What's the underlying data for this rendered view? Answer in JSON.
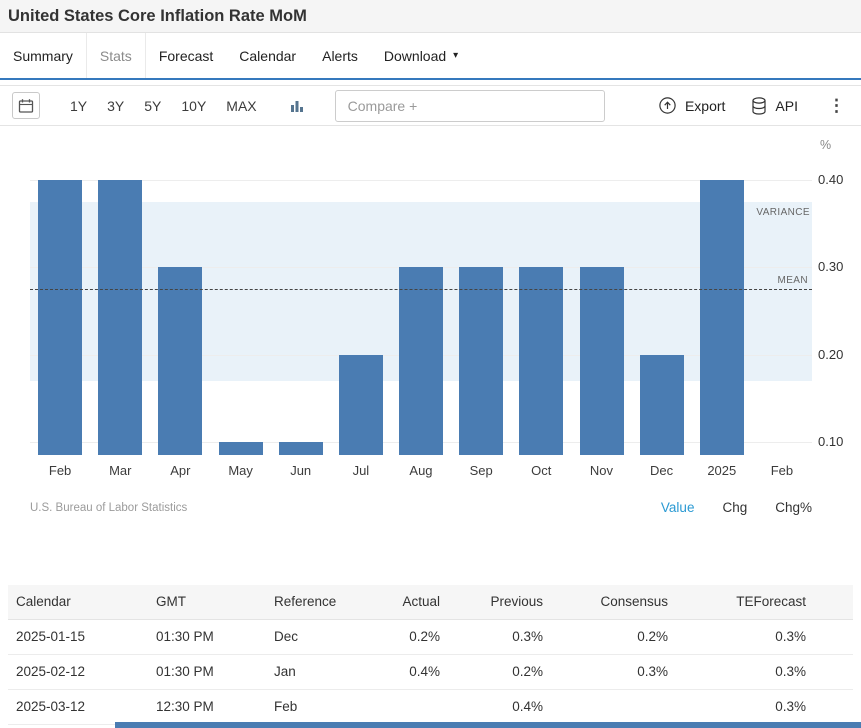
{
  "page": {
    "title": "United States Core Inflation Rate MoM"
  },
  "tabs": [
    {
      "label": "Summary",
      "active": false,
      "caret": false
    },
    {
      "label": "Stats",
      "active": true,
      "caret": false
    },
    {
      "label": "Forecast",
      "active": false,
      "caret": false
    },
    {
      "label": "Calendar",
      "active": false,
      "caret": false
    },
    {
      "label": "Alerts",
      "active": false,
      "caret": false
    },
    {
      "label": "Download",
      "active": false,
      "caret": true
    }
  ],
  "toolbar": {
    "ranges": [
      "1Y",
      "3Y",
      "5Y",
      "10Y",
      "MAX"
    ],
    "compare_placeholder": "Compare +",
    "export_label": "Export",
    "api_label": "API"
  },
  "icons": {
    "kebab": "⋮",
    "caret_down": "▾"
  },
  "chart_data": {
    "type": "bar",
    "title": "United States Core Inflation Rate MoM",
    "unit": "%",
    "categories": [
      "Feb",
      "Mar",
      "Apr",
      "May",
      "Jun",
      "Jul",
      "Aug",
      "Sep",
      "Oct",
      "Nov",
      "Dec",
      "2025",
      "Feb"
    ],
    "values": [
      0.4,
      0.4,
      0.3,
      0.1,
      0.1,
      0.2,
      0.3,
      0.3,
      0.3,
      0.3,
      0.2,
      0.4,
      null
    ],
    "ylim": [
      0.085,
      0.44
    ],
    "yticks": [
      0.1,
      0.2,
      0.3,
      0.4
    ],
    "grid": true,
    "legend_position": "bottom-right",
    "mean": 0.275,
    "mean_label": "MEAN",
    "variance_band": [
      0.17,
      0.375
    ],
    "variance_label": "VARIANCE",
    "bar_color": "#4a7cb2",
    "band_color": "#e9f2f9",
    "source": "U.S. Bureau of Labor Statistics",
    "legend_links": [
      {
        "label": "Value",
        "active": true
      },
      {
        "label": "Chg",
        "active": false
      },
      {
        "label": "Chg%",
        "active": false
      }
    ]
  },
  "table": {
    "columns": [
      "Calendar",
      "GMT",
      "Reference",
      "Actual",
      "Previous",
      "Consensus",
      "TEForecast"
    ],
    "rows": [
      [
        "2025-01-15",
        "01:30 PM",
        "Dec",
        "0.2%",
        "0.3%",
        "0.2%",
        "0.3%"
      ],
      [
        "2025-02-12",
        "01:30 PM",
        "Jan",
        "0.4%",
        "0.2%",
        "0.3%",
        "0.3%"
      ],
      [
        "2025-03-12",
        "12:30 PM",
        "Feb",
        "",
        "0.4%",
        "",
        "0.3%"
      ]
    ]
  },
  "colors": {
    "accent_blue": "#3579bd",
    "bar_blue": "#4a7cb2",
    "band_blue": "#e9f2f9",
    "link_blue": "#2b9ad3"
  }
}
